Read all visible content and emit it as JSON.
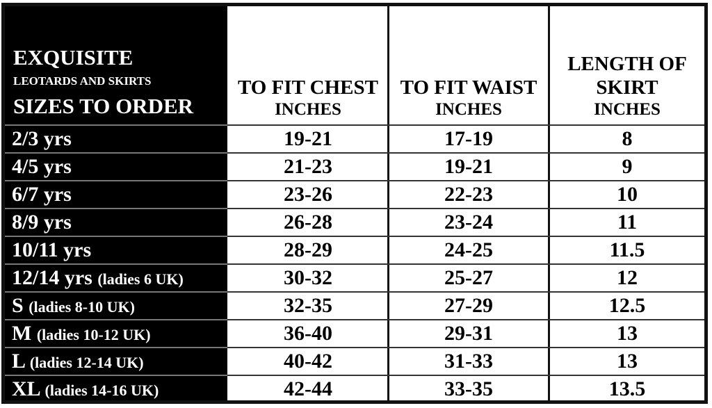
{
  "header": {
    "brand": "EXQUISITE",
    "subtitle": "LEOTARDS AND SKIRTS",
    "sizes_label": "SIZES TO ORDER",
    "columns": [
      {
        "title": "TO FIT CHEST",
        "unit": "INCHES"
      },
      {
        "title": "TO FIT WAIST",
        "unit": "INCHES"
      },
      {
        "title": "LENGTH OF SKIRT",
        "unit": "INCHES"
      }
    ]
  },
  "rows": [
    {
      "size": "2/3 yrs",
      "note": "",
      "chest": "19-21",
      "waist": "17-19",
      "length": "8"
    },
    {
      "size": "4/5 yrs",
      "note": "",
      "chest": "21-23",
      "waist": "19-21",
      "length": "9"
    },
    {
      "size": "6/7 yrs",
      "note": "",
      "chest": "23-26",
      "waist": "22-23",
      "length": "10"
    },
    {
      "size": "8/9 yrs",
      "note": "",
      "chest": "26-28",
      "waist": "23-24",
      "length": "11"
    },
    {
      "size": "10/11 yrs",
      "note": "",
      "chest": "28-29",
      "waist": "24-25",
      "length": "11.5"
    },
    {
      "size": "12/14 yrs",
      "note": "(ladies 6 UK)",
      "chest": "30-32",
      "waist": "25-27",
      "length": "12"
    },
    {
      "size": "S",
      "note": "(ladies 8-10 UK)",
      "chest": "32-35",
      "waist": "27-29",
      "length": "12.5"
    },
    {
      "size": "M",
      "note": "(ladies 10-12 UK)",
      "chest": "36-40",
      "waist": "29-31",
      "length": "13"
    },
    {
      "size": "L",
      "note": "(ladies 12-14 UK)",
      "chest": "40-42",
      "waist": "31-33",
      "length": "13"
    },
    {
      "size": "XL",
      "note": "(ladies 14-16 UK)",
      "chest": "42-44",
      "waist": "33-35",
      "length": "13.5"
    }
  ]
}
